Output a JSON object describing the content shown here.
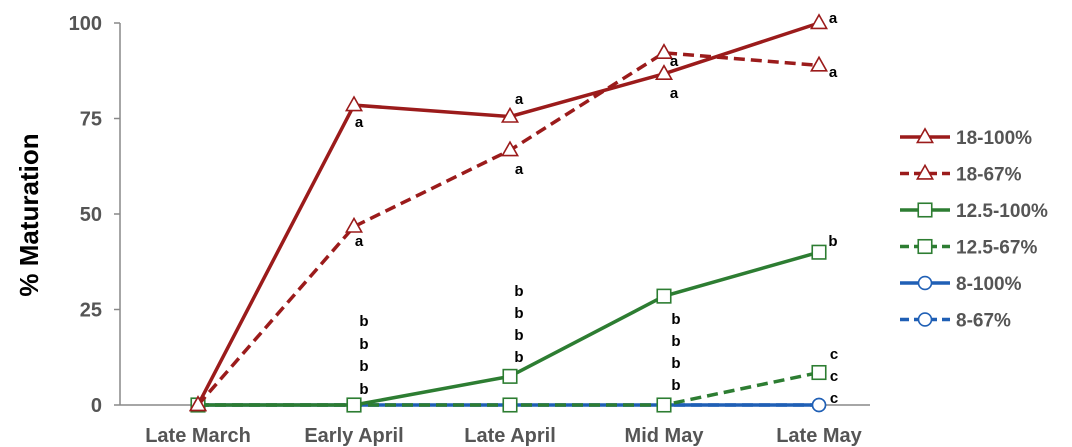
{
  "chart_data": {
    "type": "line",
    "ylabel": "% Maturation",
    "xlabel": "",
    "categories": [
      "Late March",
      "Early April",
      "Late April",
      "Mid May",
      "Late May"
    ],
    "ylim": [
      0,
      100
    ],
    "yticks": [
      0,
      25,
      50,
      75,
      100
    ],
    "grid": false,
    "legend_position": "right",
    "series": [
      {
        "name": "18-100%",
        "color": "#9b1b1b",
        "dash": "solid",
        "marker": "triangle",
        "values": [
          0,
          78.5,
          75.5,
          86.7,
          100
        ]
      },
      {
        "name": "18-67%",
        "color": "#9b1b1b",
        "dash": "dashed",
        "marker": "triangle",
        "values": [
          0,
          46.7,
          66.7,
          92.2,
          88.9
        ]
      },
      {
        "name": "12.5-100%",
        "color": "#2d7d32",
        "dash": "solid",
        "marker": "square",
        "values": [
          0,
          0,
          7.5,
          28.5,
          40
        ]
      },
      {
        "name": "12.5-67%",
        "color": "#2d7d32",
        "dash": "dashed",
        "marker": "square",
        "values": [
          0,
          0,
          0,
          0,
          8.5
        ]
      },
      {
        "name": "8-100%",
        "color": "#1f5fb5",
        "dash": "solid",
        "marker": "circle",
        "values": [
          0,
          0,
          0,
          0,
          0
        ]
      },
      {
        "name": "8-67%",
        "color": "#1f5fb5",
        "dash": "dashed",
        "marker": "circle",
        "values": [
          0,
          0,
          0,
          0,
          0
        ]
      }
    ],
    "annotations": [
      {
        "category": "Early April",
        "y": 78.5,
        "text": "a"
      },
      {
        "category": "Early April",
        "y": 46.7,
        "text": "a"
      },
      {
        "category": "Early April",
        "y": 0,
        "text": "b"
      },
      {
        "category": "Early April",
        "y": 0,
        "text": "b"
      },
      {
        "category": "Early April",
        "y": 0,
        "text": "b"
      },
      {
        "category": "Early April",
        "y": 0,
        "text": "b"
      },
      {
        "category": "Late April",
        "y": 75.5,
        "text": "a"
      },
      {
        "category": "Late April",
        "y": 66.7,
        "text": "a"
      },
      {
        "category": "Late April",
        "y": 7.5,
        "text": "b"
      },
      {
        "category": "Late April",
        "y": 0,
        "text": "b"
      },
      {
        "category": "Late April",
        "y": 0,
        "text": "b"
      },
      {
        "category": "Late April",
        "y": 0,
        "text": "b"
      },
      {
        "category": "Mid May",
        "y": 92.2,
        "text": "a"
      },
      {
        "category": "Mid May",
        "y": 86.7,
        "text": "a"
      },
      {
        "category": "Mid May",
        "y": 28.5,
        "text": "b"
      },
      {
        "category": "Mid May",
        "y": 0,
        "text": "b"
      },
      {
        "category": "Mid May",
        "y": 0,
        "text": "b"
      },
      {
        "category": "Mid May",
        "y": 0,
        "text": "b"
      },
      {
        "category": "Late May",
        "y": 100,
        "text": "a"
      },
      {
        "category": "Late May",
        "y": 88.9,
        "text": "a"
      },
      {
        "category": "Late May",
        "y": 40,
        "text": "b"
      },
      {
        "category": "Late May",
        "y": 8.5,
        "text": "c"
      },
      {
        "category": "Late May",
        "y": 0,
        "text": "c"
      },
      {
        "category": "Late May",
        "y": 0,
        "text": "c"
      }
    ]
  }
}
